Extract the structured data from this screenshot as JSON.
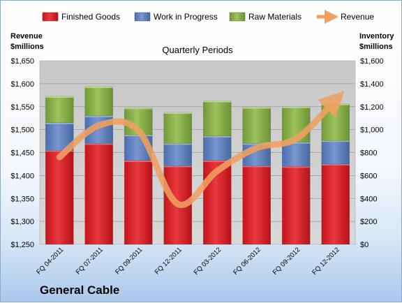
{
  "company_label": "General Cable",
  "chart_data": {
    "type": "bar",
    "stacked": true,
    "subtitle": "Quarterly Periods",
    "categories": [
      "FQ 04-2011",
      "FQ 07-2011",
      "FQ 09-2011",
      "FQ 12-2011",
      "FQ 03-2012",
      "FQ 06-2012",
      "FQ 09-2012",
      "FQ 12-2012"
    ],
    "left_axis": {
      "label_line1": "Revenue",
      "label_line2": "$millions",
      "min": 1250,
      "max": 1650,
      "step": 50,
      "tick_labels": [
        "$1,250",
        "$1,300",
        "$1,350",
        "$1,400",
        "$1,450",
        "$1,500",
        "$1,550",
        "$1,600",
        "$1,650"
      ]
    },
    "right_axis": {
      "label_line1": "Inventory",
      "label_line2": "$millions",
      "min": 0,
      "max": 1600,
      "step": 200,
      "tick_labels": [
        "$0",
        "$200",
        "$400",
        "$600",
        "$800",
        "$1,000",
        "$1,200",
        "$1,400",
        "$1,600"
      ]
    },
    "series": [
      {
        "name": "Finished Goods",
        "axis": "right",
        "color": "#d9262c",
        "values": [
          820,
          880,
          730,
          685,
          730,
          685,
          680,
          700
        ]
      },
      {
        "name": "Work in Progress",
        "axis": "right",
        "color": "#5b7fbf",
        "values": [
          240,
          240,
          225,
          195,
          215,
          195,
          210,
          205
        ]
      },
      {
        "name": "Raw Materials",
        "axis": "right",
        "color": "#88b04b",
        "values": [
          230,
          255,
          235,
          270,
          305,
          315,
          310,
          320
        ]
      },
      {
        "name": "Revenue",
        "type": "line",
        "axis": "left",
        "color": "#f0a060",
        "values": [
          1440,
          1509,
          1498,
          1338,
          1410,
          1460,
          1480,
          1565
        ]
      }
    ],
    "legend_position": "top",
    "grid": true
  }
}
